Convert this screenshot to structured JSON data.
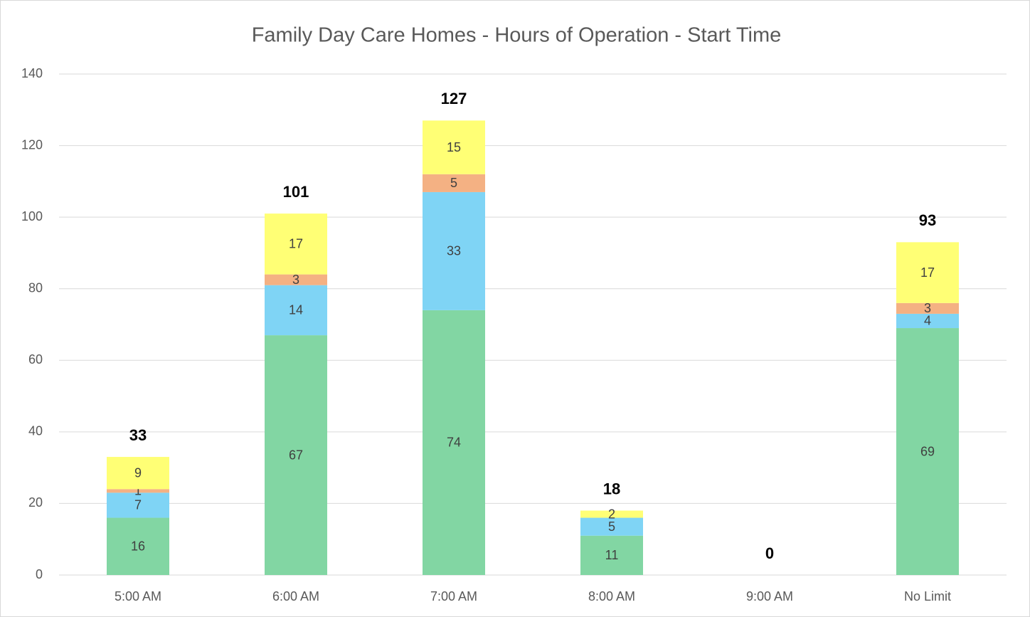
{
  "chart_data": {
    "type": "stacked_bar",
    "title": "Family Day Care Homes - Hours of Operation - Start Time",
    "categories": [
      "5:00 AM",
      "6:00 AM",
      "7:00 AM",
      "8:00 AM",
      "9:00 AM",
      "No Limit"
    ],
    "series": [
      {
        "color": "#82d6a3",
        "values": [
          16,
          67,
          74,
          11,
          0,
          69
        ]
      },
      {
        "color": "#7fd4f5",
        "values": [
          7,
          14,
          33,
          5,
          0,
          4
        ]
      },
      {
        "color": "#f4b183",
        "values": [
          1,
          3,
          5,
          0,
          0,
          3
        ]
      },
      {
        "color": "#ffff75",
        "values": [
          9,
          17,
          15,
          2,
          0,
          17
        ]
      }
    ],
    "totals": [
      33,
      101,
      127,
      18,
      0,
      93
    ],
    "ylim": [
      0,
      140
    ],
    "yticks": [
      0,
      20,
      40,
      60,
      80,
      100,
      120,
      140
    ],
    "grid": true
  }
}
